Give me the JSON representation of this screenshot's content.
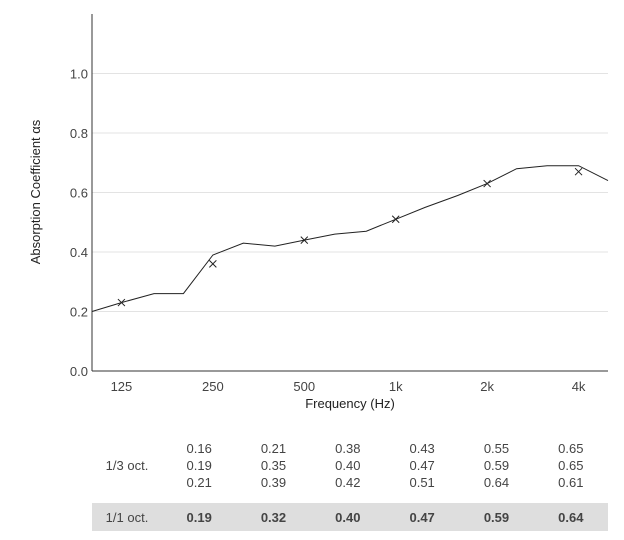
{
  "chart_data": {
    "type": "line",
    "xlabel": "Frequency (Hz)",
    "ylabel": "Absorption Coefficient αs",
    "ylim": [
      0.0,
      1.2
    ],
    "y_ticks": [
      "0.0",
      "0.2",
      "0.4",
      "0.6",
      "0.8",
      "1.0"
    ],
    "x_ticks": [
      "125",
      "250",
      "500",
      "1k",
      "2k",
      "4k"
    ],
    "x_scale": "log",
    "grid": "horizontal",
    "series": [
      {
        "style": "line",
        "x": [
          100,
          125,
          160,
          200,
          250,
          315,
          400,
          500,
          630,
          800,
          1000,
          1250,
          1600,
          2000,
          2500,
          3150,
          4000,
          5000
        ],
        "values": [
          0.2,
          0.23,
          0.26,
          0.26,
          0.39,
          0.43,
          0.42,
          0.44,
          0.46,
          0.47,
          0.51,
          0.55,
          0.59,
          0.63,
          0.68,
          0.69,
          0.69,
          0.64
        ]
      },
      {
        "style": "markers",
        "marker": "x",
        "x": [
          125,
          250,
          500,
          1000,
          2000,
          4000
        ],
        "values": [
          0.23,
          0.36,
          0.44,
          0.51,
          0.63,
          0.67
        ]
      }
    ]
  },
  "table": {
    "third_octave_label": "1/3 oct.",
    "third_octave_values": [
      [
        "0.16",
        "0.19",
        "0.21"
      ],
      [
        "0.21",
        "0.35",
        "0.39"
      ],
      [
        "0.38",
        "0.40",
        "0.42"
      ],
      [
        "0.43",
        "0.47",
        "0.51"
      ],
      [
        "0.55",
        "0.59",
        "0.64"
      ],
      [
        "0.65",
        "0.65",
        "0.61"
      ]
    ],
    "octave_label": "1/1 oct.",
    "octave_values": [
      "0.19",
      "0.32",
      "0.40",
      "0.47",
      "0.59",
      "0.64"
    ]
  }
}
